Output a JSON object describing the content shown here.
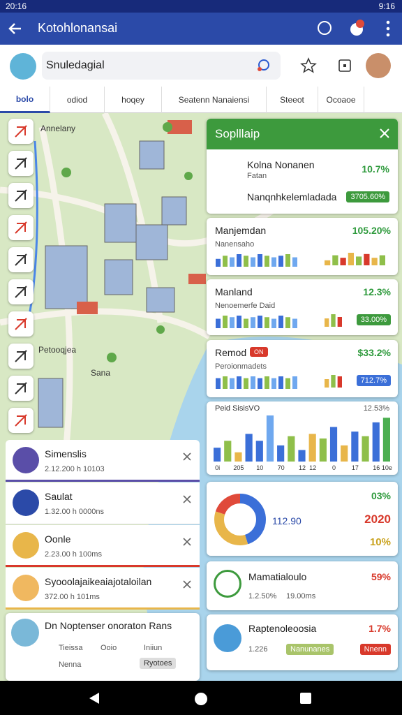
{
  "status_bar": {
    "time": "20:16",
    "clock": "9:16"
  },
  "app_bar": {
    "title": "Kotohlonansai"
  },
  "search": {
    "query": "Snuledagial"
  },
  "tabs": [
    "bolo",
    "odiod",
    "hoqey",
    "Seatenn Nanaiensi",
    "Steeot",
    "Ocoaoe"
  ],
  "map": {
    "labels": [
      "Annelany",
      "Petooqjea",
      "Sana"
    ]
  },
  "panel": {
    "title": "Soplllaip",
    "rows": [
      {
        "name": "Kolna Nonanen",
        "sub": "Fatan",
        "value": "10.7%"
      },
      {
        "name": "Nanqnhkelemladada",
        "value": "3705.60%"
      }
    ],
    "cards": [
      {
        "name": "Manjemdan",
        "sub": "Nanensaho",
        "value": "105.20%",
        "spark": [
          5,
          7,
          6,
          8,
          7,
          6,
          8,
          7,
          6,
          7,
          8,
          6
        ],
        "spark2": [
          4,
          8,
          6,
          10,
          7,
          9,
          6,
          8
        ]
      },
      {
        "name": "Manland",
        "sub": "Nenoemerfe Daid",
        "value": "12.3%",
        "badge": "33.00%",
        "spark": [
          6,
          8,
          7,
          8,
          6,
          7,
          8,
          7,
          6,
          8,
          7,
          6
        ],
        "spark2": [
          6,
          9,
          7
        ]
      },
      {
        "name": "Remod",
        "tag": "ON",
        "sub": "Peroionmadets",
        "value": "$33.2%",
        "badge": "712.7%",
        "spark": [
          6,
          7,
          6,
          7,
          6,
          7,
          6,
          7,
          6,
          7,
          6,
          7
        ],
        "spark2": [
          6,
          9,
          8
        ]
      }
    ],
    "chart": {
      "title": "Peid SisisVO",
      "value": "12.53%",
      "categories": [
        "0i",
        null,
        "205",
        null,
        "10",
        null,
        "70",
        null,
        "12",
        "12",
        null,
        "0",
        null,
        "17",
        null,
        "16",
        "10e"
      ],
      "values": [
        30,
        45,
        20,
        60,
        45,
        100,
        35,
        55,
        25,
        60,
        50,
        75,
        35,
        65,
        55,
        85,
        95
      ],
      "colors": [
        "#3b6fd8",
        "#8fbf4a",
        "#e8b64a",
        "#3b6fd8",
        "#3b6fd8",
        "#6fa8ef",
        "#3b6fd8",
        "#8fbf4a",
        "#3b6fd8",
        "#e8b64a",
        "#8fbf4a",
        "#3b6fd8",
        "#e8b64a",
        "#3b6fd8",
        "#8fbf4a",
        "#3b6fd8",
        "#4caf50"
      ]
    },
    "donut": {
      "center": "112.90",
      "labels": [
        "03%",
        "2020",
        "10%"
      ],
      "values": [
        45,
        35,
        20
      ],
      "colors": [
        "#3b6fd8",
        "#e8b64a",
        "#e04a3a"
      ]
    },
    "stats": [
      {
        "name": "Mamatialoulo",
        "value": "59%",
        "meta": [
          "1.2.50%",
          "19.00ms"
        ]
      },
      {
        "name": "Raptenoleoosia",
        "value": "1.7%",
        "meta": [
          "1.226"
        ],
        "chip": "Nanunanes",
        "badge": "Nnenn"
      }
    ]
  },
  "list": [
    {
      "title": "Simenslis",
      "meta": "2.12.200 h 10103"
    },
    {
      "title": "Saulat",
      "meta": "1.32.00 h 0000ns"
    },
    {
      "title": "Oonle",
      "meta": "2.23.00 h 100ms"
    },
    {
      "title": "Syooolajaikeaiajotaloilan",
      "meta": "372.00 h 101ms"
    }
  ],
  "bottom_card": {
    "title": "Dn Noptenser onoraton Rans",
    "items": [
      "Tieissa",
      "Ooio",
      "Iniiun"
    ],
    "footer": [
      "Nenna",
      "Ryotoes"
    ]
  }
}
